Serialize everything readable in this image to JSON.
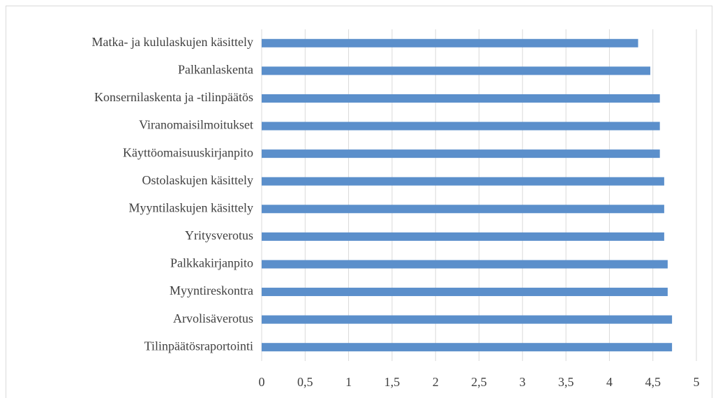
{
  "chart_data": {
    "type": "hbar",
    "categories": [
      "Matka- ja kululaskujen käsittely",
      "Palkanlaskenta",
      "Konsernilaskenta ja -tilinpäätös",
      "Viranomaisilmoitukset",
      "Käyttöomaisuuskirjanpito",
      "Ostolaskujen käsittely",
      "Myyntilaskujen käsittely",
      "Yritysverotus",
      "Palkkakirjanpito",
      "Myyntireskontra",
      "Arvolisäverotus",
      "Tilinpäätösraportointi"
    ],
    "values": [
      4.33,
      4.47,
      4.58,
      4.58,
      4.58,
      4.63,
      4.63,
      4.63,
      4.67,
      4.67,
      4.72,
      4.72
    ],
    "color": "#5b8fcb",
    "xlim": [
      0,
      5
    ],
    "xticks": [
      0,
      {
        "value": 0.5,
        "label": "0,5"
      },
      1,
      {
        "value": 1.5,
        "label": "1,5"
      },
      2,
      {
        "value": 2.5,
        "label": "2,5"
      },
      3,
      {
        "value": 3.5,
        "label": "3,5"
      },
      4,
      {
        "value": 4.5,
        "label": "4,5"
      },
      5
    ],
    "grid": true
  }
}
